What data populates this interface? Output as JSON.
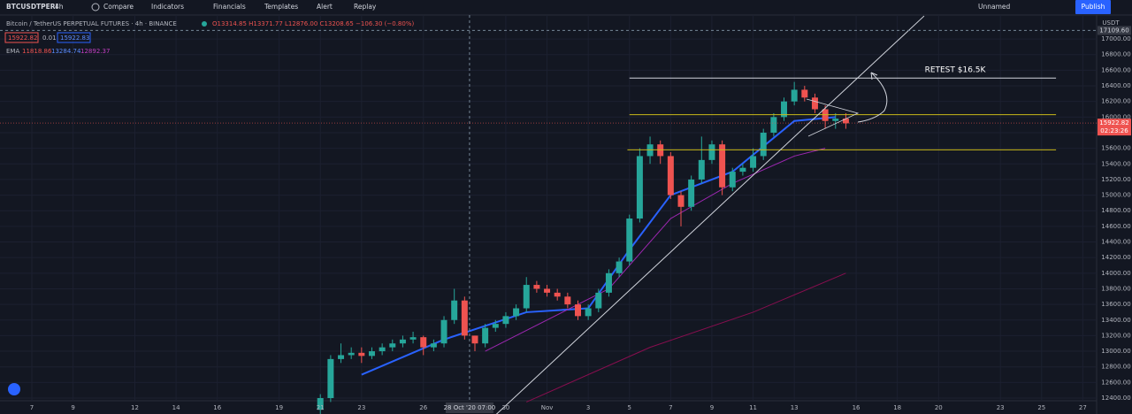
{
  "ui": {
    "symbol": "BTCUSDTPERI",
    "interval": "4h",
    "toolbar": [
      "Compare",
      "Indicators",
      "Financials",
      "Templates",
      "Alert",
      "Replay"
    ],
    "layout_name": "Unnamed",
    "publish": "Publish",
    "legend_title": "Bitcoin / TetherUS PERPETUAL FUTURES · 4h · BINANCE",
    "ohlc": "O13314.85 H13371.77 L12876.00 C13208.65 −106.30 (−0.80%)",
    "bid": "15922.82",
    "spread": "0.01",
    "ask": "15922.83",
    "ema_label": "EMA",
    "ema_values": [
      "11818.86",
      "13284.74",
      "12892.37"
    ],
    "currency": "USDT",
    "countdown": "02:23:26"
  },
  "chart_data": {
    "type": "candlestick",
    "x": [
      14,
      14.5,
      15,
      15.5,
      16,
      16.5,
      17,
      17.5,
      18,
      18.5,
      19,
      19.5,
      20,
      20.5,
      21,
      21.5,
      22,
      22.5,
      23,
      23.5,
      24,
      24.5,
      25,
      25.5,
      26,
      26.5,
      27,
      27.5,
      28,
      28.5,
      29,
      29.5,
      30,
      30.5,
      31,
      31.5,
      32,
      32.5,
      33,
      33.5,
      34,
      34.5,
      35,
      35.5,
      36,
      36.5,
      37,
      37.5,
      38,
      38.5,
      39,
      39.5
    ],
    "open": [
      12250,
      12400,
      12900,
      12950,
      12980,
      12940,
      13000,
      13050,
      13100,
      13150,
      13180,
      13050,
      13100,
      13400,
      13650,
      13200,
      13100,
      13300,
      13350,
      13450,
      13550,
      13850,
      13800,
      13750,
      13700,
      13600,
      13450,
      13550,
      13750,
      14000,
      14150,
      14700,
      15500,
      15650,
      15500,
      15000,
      14850,
      15200,
      15450,
      15650,
      15100,
      15300,
      15350,
      15500,
      15800,
      16000,
      16200,
      16350,
      16250,
      16100,
      15950,
      15980
    ],
    "high": [
      12450,
      12950,
      13100,
      13050,
      13050,
      13050,
      13100,
      13150,
      13200,
      13250,
      13200,
      13150,
      13450,
      13800,
      13700,
      13200,
      13350,
      13400,
      13500,
      13600,
      13950,
      13900,
      13850,
      13800,
      13750,
      13650,
      13600,
      13800,
      14050,
      14200,
      14750,
      15600,
      15750,
      15700,
      15550,
      15050,
      15250,
      15750,
      15700,
      15700,
      15350,
      15400,
      15600,
      15850,
      16050,
      16250,
      16450,
      16400,
      16300,
      16150,
      16050,
      16050
    ],
    "low": [
      12150,
      12350,
      12850,
      12900,
      12850,
      12900,
      12950,
      13000,
      13050,
      13100,
      12950,
      13000,
      13050,
      13350,
      13150,
      13000,
      13050,
      13250,
      13300,
      13400,
      13500,
      13750,
      13700,
      13650,
      13550,
      13400,
      13400,
      13500,
      13700,
      13950,
      14100,
      14650,
      15400,
      15400,
      14950,
      14600,
      14800,
      15150,
      15400,
      15000,
      15050,
      15250,
      15300,
      15450,
      15750,
      15950,
      16150,
      16200,
      16050,
      15850,
      15850,
      15850
    ],
    "close": [
      12400,
      12900,
      12950,
      12980,
      12940,
      13000,
      13050,
      13100,
      13150,
      13180,
      13050,
      13100,
      13400,
      13650,
      13200,
      13100,
      13300,
      13350,
      13450,
      13550,
      13850,
      13800,
      13750,
      13700,
      13600,
      13450,
      13550,
      13750,
      14000,
      14150,
      14700,
      15500,
      15650,
      15500,
      15000,
      14850,
      15200,
      15450,
      15650,
      15100,
      15300,
      15350,
      15500,
      15800,
      16000,
      16200,
      16350,
      16250,
      16100,
      15950,
      15980,
      15920
    ],
    "up_color": "#26a69a",
    "down_color": "#ef5350",
    "lines": [
      {
        "color": "#2962ff",
        "x": [
          16,
          20,
          24,
          27,
          29,
          31,
          34,
          37,
          39
        ],
        "values": [
          12700,
          13150,
          13500,
          13550,
          14300,
          15000,
          15300,
          15950,
          16000
        ]
      },
      {
        "color": "#9c27b0",
        "x": [
          22,
          28,
          31,
          34,
          37,
          38.5
        ],
        "values": [
          13000,
          13800,
          14700,
          15150,
          15500,
          15600
        ]
      },
      {
        "color": "#880e4f",
        "x": [
          24,
          30,
          35,
          39.5
        ],
        "values": [
          12350,
          13050,
          13500,
          14000
        ]
      }
    ],
    "levels": [
      {
        "value": 16500,
        "color": "#d1d4dc",
        "x": [
          29,
          49.7
        ]
      },
      {
        "value": 16030,
        "color": "#c9b81a",
        "x": [
          29,
          49.7
        ]
      },
      {
        "value": 15580,
        "color": "#c9b81a",
        "x": [
          28.9,
          49.7
        ]
      }
    ],
    "trendline": {
      "x": [
        22.5,
        43.3
      ],
      "values": [
        12182,
        17295
      ]
    },
    "annotation": "RETEST $16.5K",
    "last_price": 15922.82,
    "crosshair": {
      "x": 21.24,
      "x_label": "28 Oct '20 07:00",
      "y": {
        "value": 17109.6,
        "label": "17109.60"
      }
    },
    "xlim": [
      -1.545,
      51.67
    ],
    "ylim": [
      12366,
      17307
    ],
    "xticks": [
      {
        "value": 0,
        "label": "7"
      },
      {
        "value": 2,
        "label": "9"
      },
      {
        "value": 5,
        "label": "12"
      },
      {
        "value": 7,
        "label": "14"
      },
      {
        "value": 9,
        "label": "16"
      },
      {
        "value": 12,
        "label": "19"
      },
      {
        "value": 14,
        "label": "21"
      },
      {
        "value": 16,
        "label": "23"
      },
      {
        "value": 19,
        "label": "26"
      },
      {
        "value": 23,
        "label": "30"
      },
      {
        "value": 25,
        "label": "Nov"
      },
      {
        "value": 27,
        "label": "3"
      },
      {
        "value": 29,
        "label": "5"
      },
      {
        "value": 31,
        "label": "7"
      },
      {
        "value": 33,
        "label": "9"
      },
      {
        "value": 35,
        "label": "11"
      },
      {
        "value": 37,
        "label": "13"
      },
      {
        "value": 40,
        "label": "16"
      },
      {
        "value": 42,
        "label": "18"
      },
      {
        "value": 44,
        "label": "20"
      },
      {
        "value": 47,
        "label": "23"
      },
      {
        "value": 49,
        "label": "25"
      },
      {
        "value": 51,
        "label": "27"
      }
    ],
    "yticks": [
      {
        "value": 12400,
        "label": "12400.00"
      },
      {
        "value": 12600,
        "label": "12600.00"
      },
      {
        "value": 12800,
        "label": "12800.00"
      },
      {
        "value": 13000,
        "label": "13000.00"
      },
      {
        "value": 13200,
        "label": "13200.00"
      },
      {
        "value": 13400,
        "label": "13400.00"
      },
      {
        "value": 13600,
        "label": "13600.00"
      },
      {
        "value": 13800,
        "label": "13800.00"
      },
      {
        "value": 14000,
        "label": "14000.00"
      },
      {
        "value": 14200,
        "label": "14200.00"
      },
      {
        "value": 14400,
        "label": "14400.00"
      },
      {
        "value": 14600,
        "label": "14600.00"
      },
      {
        "value": 14800,
        "label": "14800.00"
      },
      {
        "value": 15000,
        "label": "15000.00"
      },
      {
        "value": 15200,
        "label": "15200.00"
      },
      {
        "value": 15400,
        "label": "15400.00"
      },
      {
        "value": 15600,
        "label": "15600.00"
      },
      {
        "value": 15800,
        "label": "15800.00"
      },
      {
        "value": 16000,
        "label": "16000.00"
      },
      {
        "value": 16200,
        "label": "16200.00"
      },
      {
        "value": 16400,
        "label": "16400.00"
      },
      {
        "value": 16600,
        "label": "16600.00"
      },
      {
        "value": 16800,
        "label": "16800.00"
      },
      {
        "value": 17000,
        "label": "17000.00"
      }
    ],
    "grid": true
  }
}
